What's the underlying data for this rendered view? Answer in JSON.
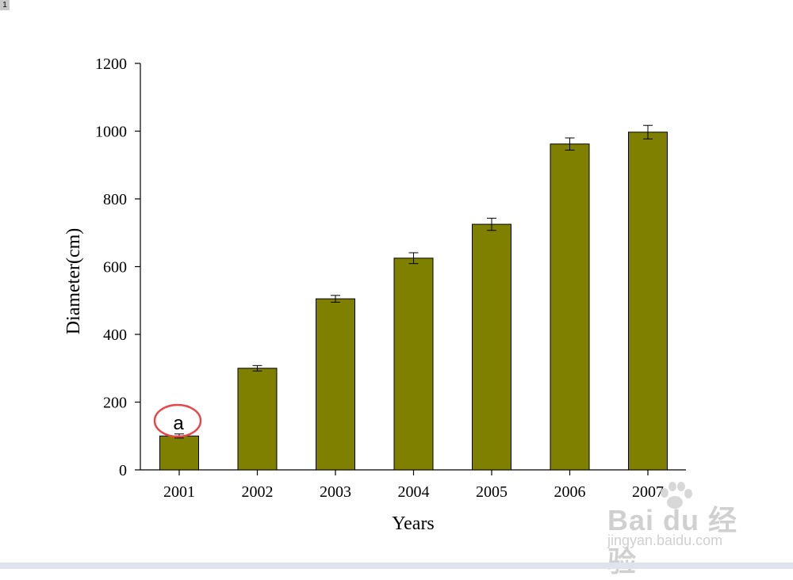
{
  "page_badge": "1",
  "chart_data": {
    "type": "bar",
    "categories": [
      "2001",
      "2002",
      "2003",
      "2004",
      "2005",
      "2006",
      "2007"
    ],
    "series": [
      {
        "values": [
          100,
          300,
          505,
          625,
          725,
          962,
          997
        ],
        "errors": [
          6,
          8,
          10,
          16,
          18,
          18,
          20
        ]
      }
    ],
    "xlabel": "Years",
    "ylabel": "Diameter(cm)",
    "ylim": [
      0,
      1200
    ],
    "yticks": [
      0,
      200,
      400,
      600,
      800,
      1000,
      1200
    ],
    "bar_color": "#808000",
    "grid": false,
    "annotation": {
      "text": "a",
      "category": "2001",
      "circle_color": "#e8474a"
    }
  },
  "watermark": {
    "logo": "Bai du 经验",
    "sub": "jingyan.baidu.com"
  }
}
